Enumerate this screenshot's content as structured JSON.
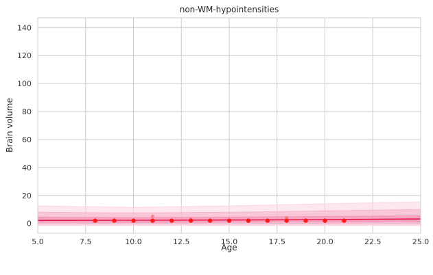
{
  "chart_data": {
    "type": "line",
    "title": "non-WM-hypointensities",
    "xlabel": "Age",
    "ylabel": "Brain volume",
    "xlim": [
      5,
      25
    ],
    "ylim": [
      -7,
      147
    ],
    "x_ticks": [
      5.0,
      7.5,
      10.0,
      12.5,
      15.0,
      17.5,
      20.0,
      22.5,
      25.0
    ],
    "x_tick_labels": [
      "5.0",
      "7.5",
      "10.0",
      "12.5",
      "15.0",
      "17.5",
      "20.0",
      "22.5",
      "25.0"
    ],
    "y_ticks": [
      0,
      20,
      40,
      60,
      80,
      100,
      120,
      140
    ],
    "y_tick_labels": [
      "0",
      "20",
      "40",
      "60",
      "80",
      "100",
      "120",
      "140"
    ],
    "grid": true,
    "colors": {
      "median_line": "#e8194b",
      "outer_band": "#fbd3e3",
      "middle_band": "#f7b3cc",
      "inner_band": "#f48fb3",
      "points": "#ff1a1a",
      "outlier_points": "#f07b7b"
    },
    "median_line": {
      "x": [
        5,
        10,
        15,
        20,
        25
      ],
      "y": [
        2.2,
        2.3,
        2.5,
        2.8,
        3.2
      ]
    },
    "bands": [
      {
        "x": [
          5,
          10,
          15,
          20,
          25
        ],
        "upper": [
          12.5,
          11.5,
          12.5,
          14.0,
          15.5
        ],
        "lower": [
          -1.5,
          -1.5,
          -1.5,
          -1.5,
          -1.5
        ]
      },
      {
        "x": [
          5,
          10,
          15,
          20,
          25
        ],
        "upper": [
          8.0,
          7.5,
          8.0,
          9.0,
          10.0
        ],
        "lower": [
          -0.5,
          -0.5,
          -0.5,
          -0.5,
          -0.5
        ]
      },
      {
        "x": [
          5,
          10,
          15,
          20,
          25
        ],
        "upper": [
          4.5,
          4.2,
          4.5,
          5.0,
          5.5
        ],
        "lower": [
          0.8,
          0.8,
          0.9,
          1.0,
          1.0
        ]
      }
    ],
    "points": {
      "x": [
        8,
        9,
        10,
        11,
        12,
        13,
        14,
        15,
        16,
        17,
        18,
        19,
        20,
        21
      ],
      "y": [
        2,
        2,
        2,
        2,
        2,
        2,
        2,
        2,
        2,
        2,
        2,
        2,
        2,
        2
      ]
    },
    "outlier_points": {
      "x": [
        11,
        13,
        18
      ],
      "y": [
        5,
        3,
        4
      ]
    }
  }
}
